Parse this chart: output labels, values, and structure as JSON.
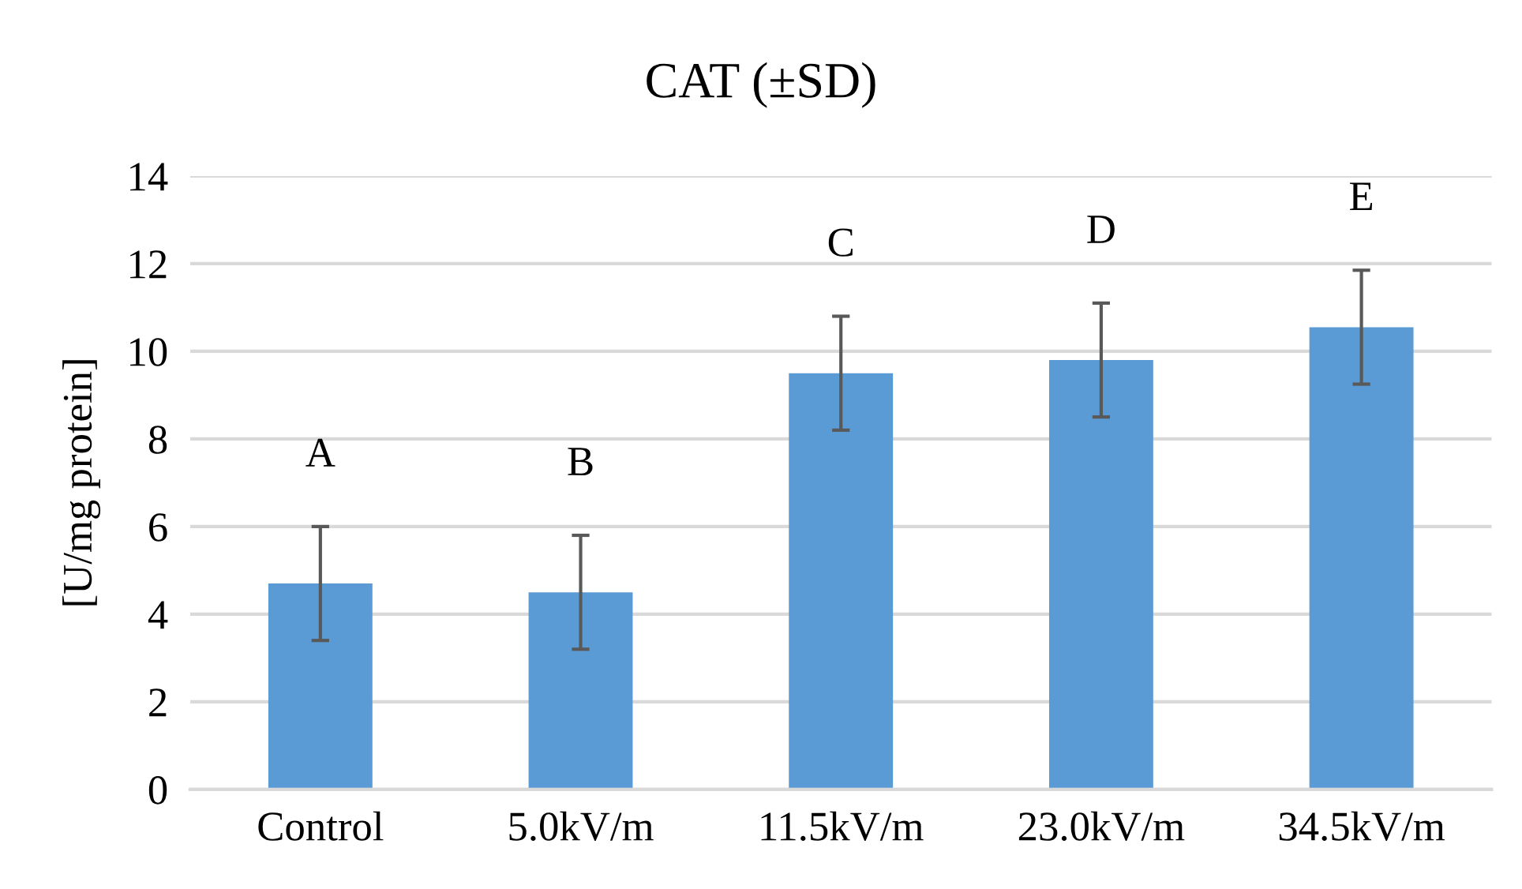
{
  "chart_data": {
    "type": "bar",
    "title": "CAT (±SD)",
    "ylabel": "[U/mg protein]",
    "categories": [
      "Control",
      "5.0kV/m",
      "11.5kV/m",
      "23.0kV/m",
      "34.5kV/m"
    ],
    "values": [
      4.7,
      4.5,
      9.5,
      9.8,
      10.55
    ],
    "errors": [
      1.3,
      1.3,
      1.3,
      1.3,
      1.3
    ],
    "color": "#5b9bd5",
    "ylim": [
      0,
      14
    ],
    "yticks": [
      0,
      2,
      4,
      6,
      8,
      10,
      12,
      14
    ],
    "grid": "y",
    "annotations": [
      "A",
      "B",
      "C",
      "D",
      "E"
    ]
  }
}
